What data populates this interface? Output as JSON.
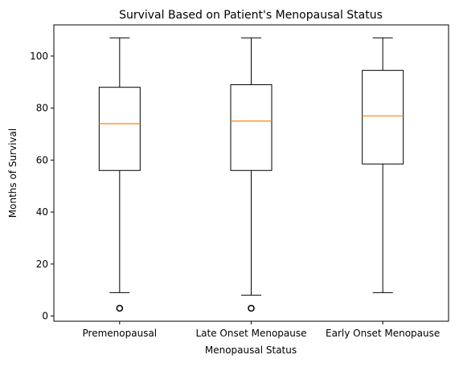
{
  "chart_data": {
    "type": "box",
    "title": "Survival Based on Patient's Menopausal Status",
    "xlabel": "Menopausal Status",
    "ylabel": "Months of Survival",
    "ylim": [
      -2,
      112
    ],
    "yticks": [
      0,
      20,
      40,
      60,
      80,
      100
    ],
    "grid": false,
    "categories": [
      "Premenopausal",
      "Late Onset Menopause",
      "Early Onset Menopause"
    ],
    "boxes": [
      {
        "category": "Premenopausal",
        "whisker_low": 9,
        "q1": 56,
        "median": 74,
        "q3": 88,
        "whisker_high": 107,
        "outliers": [
          3
        ]
      },
      {
        "category": "Late Onset Menopause",
        "whisker_low": 8,
        "q1": 56,
        "median": 75,
        "q3": 89,
        "whisker_high": 107,
        "outliers": [
          3
        ]
      },
      {
        "category": "Early Onset Menopause",
        "whisker_low": 9,
        "q1": 58.5,
        "median": 77,
        "q3": 94.5,
        "whisker_high": 107,
        "outliers": []
      }
    ],
    "colors": {
      "box": "#000000",
      "median": "#ff7f0e",
      "axes": "#000000"
    }
  }
}
